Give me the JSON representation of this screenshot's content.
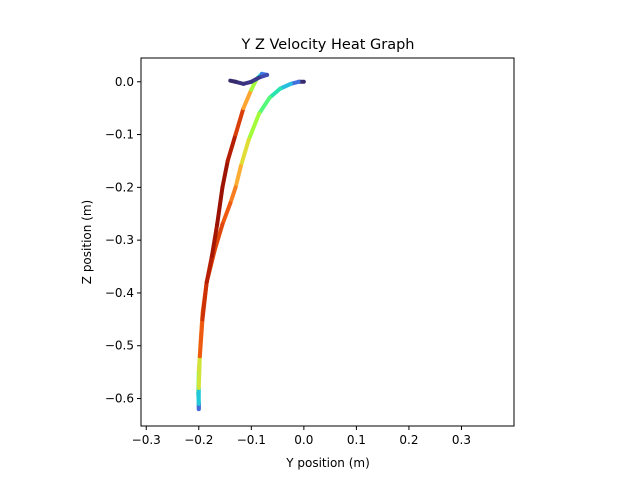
{
  "chart_data": {
    "type": "line",
    "title": "Y Z Velocity Heat Graph",
    "xlabel": "Y position (m)",
    "ylabel": "Z position (m)",
    "xlim": [
      -0.31,
      0.4
    ],
    "ylim": [
      -0.652,
      0.045
    ],
    "xticks": [
      -0.3,
      -0.2,
      -0.1,
      0.0,
      0.1,
      0.2,
      0.3
    ],
    "xtick_labels": [
      "−0.3",
      "−0.2",
      "−0.1",
      "0.0",
      "0.1",
      "0.2",
      "0.3"
    ],
    "yticks": [
      0.0,
      -0.1,
      -0.2,
      -0.3,
      -0.4,
      -0.5,
      -0.6
    ],
    "ytick_labels": [
      "0.0",
      "−0.1",
      "−0.2",
      "−0.3",
      "−0.4",
      "−0.5",
      "−0.6"
    ],
    "grid": false,
    "legend": "none",
    "colormap": "turbo",
    "series": [
      {
        "points": [
          {
            "x": 0.0,
            "y": 0.0,
            "v": 0.02
          },
          {
            "x": -0.01,
            "y": 0.0,
            "v": 0.05
          },
          {
            "x": -0.025,
            "y": -0.004,
            "v": 0.22
          },
          {
            "x": -0.045,
            "y": -0.013,
            "v": 0.3
          },
          {
            "x": -0.065,
            "y": -0.03,
            "v": 0.38
          },
          {
            "x": -0.085,
            "y": -0.06,
            "v": 0.45
          },
          {
            "x": -0.105,
            "y": -0.11,
            "v": 0.55
          },
          {
            "x": -0.12,
            "y": -0.16,
            "v": 0.65
          },
          {
            "x": -0.13,
            "y": -0.2,
            "v": 0.72
          },
          {
            "x": -0.14,
            "y": -0.23,
            "v": 0.78
          },
          {
            "x": -0.155,
            "y": -0.27,
            "v": 0.82
          },
          {
            "x": -0.17,
            "y": -0.32,
            "v": 0.85
          },
          {
            "x": -0.185,
            "y": -0.38,
            "v": 0.83
          },
          {
            "x": -0.193,
            "y": -0.44,
            "v": 0.79
          },
          {
            "x": -0.197,
            "y": -0.5,
            "v": 0.7
          },
          {
            "x": -0.2,
            "y": -0.55,
            "v": 0.55
          },
          {
            "x": -0.201,
            "y": -0.59,
            "v": 0.35
          },
          {
            "x": -0.2,
            "y": -0.61,
            "v": 0.2
          },
          {
            "x": -0.2,
            "y": -0.62,
            "v": 0.1
          },
          {
            "x": -0.2,
            "y": -0.61,
            "v": 0.15
          },
          {
            "x": -0.2,
            "y": -0.58,
            "v": 0.4
          },
          {
            "x": -0.198,
            "y": -0.52,
            "v": 0.75
          },
          {
            "x": -0.193,
            "y": -0.45,
            "v": 0.85
          },
          {
            "x": -0.185,
            "y": -0.38,
            "v": 0.9
          },
          {
            "x": -0.175,
            "y": -0.33,
            "v": 0.93
          },
          {
            "x": -0.165,
            "y": -0.27,
            "v": 0.95
          },
          {
            "x": -0.155,
            "y": -0.2,
            "v": 0.96
          },
          {
            "x": -0.145,
            "y": -0.15,
            "v": 0.94
          },
          {
            "x": -0.13,
            "y": -0.1,
            "v": 0.9
          },
          {
            "x": -0.115,
            "y": -0.05,
            "v": 0.8
          },
          {
            "x": -0.1,
            "y": -0.015,
            "v": 0.6
          },
          {
            "x": -0.09,
            "y": 0.005,
            "v": 0.4
          },
          {
            "x": -0.08,
            "y": 0.015,
            "v": 0.2
          },
          {
            "x": -0.07,
            "y": 0.013,
            "v": 0.1
          },
          {
            "x": -0.085,
            "y": 0.008,
            "v": 0.06
          },
          {
            "x": -0.1,
            "y": 0.0,
            "v": 0.05
          },
          {
            "x": -0.115,
            "y": -0.004,
            "v": 0.05
          },
          {
            "x": -0.13,
            "y": 0.0,
            "v": 0.04
          },
          {
            "x": -0.14,
            "y": 0.002,
            "v": 0.03
          }
        ]
      }
    ]
  }
}
